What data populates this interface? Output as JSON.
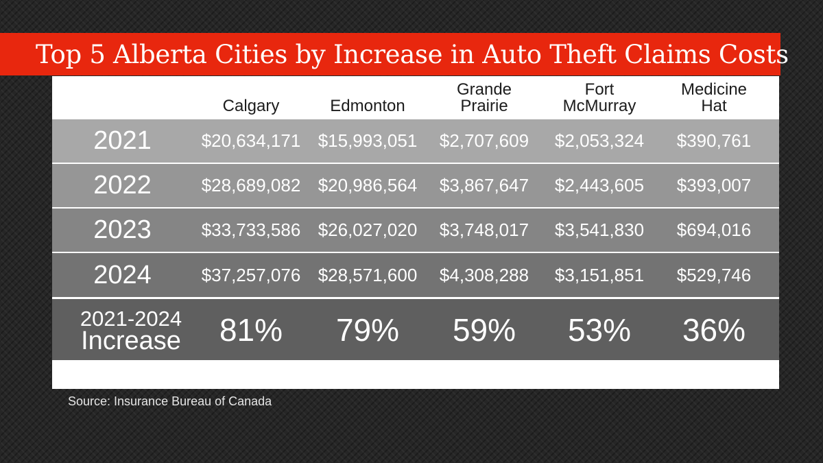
{
  "title": "Top 5 Alberta Cities by Increase in Auto Theft Claims Costs",
  "source": "Source: Insurance Bureau of Canada",
  "chart_data": {
    "type": "table",
    "title": "Top 5 Alberta Cities by Increase in Auto Theft Claims Costs",
    "columns": [
      "Calgary",
      "Edmonton",
      "Grande\nPrairie",
      "Fort\nMcMurray",
      "Medicine\nHat"
    ],
    "rows": [
      {
        "label": "2021",
        "values": [
          "$20,634,171",
          "$15,993,051",
          "$2,707,609",
          "$2,053,324",
          "$390,761"
        ]
      },
      {
        "label": "2022",
        "values": [
          "$28,689,082",
          "$20,986,564",
          "$3,867,647",
          "$2,443,605",
          "$393,007"
        ]
      },
      {
        "label": "2023",
        "values": [
          "$33,733,586",
          "$26,027,020",
          "$3,748,017",
          "$3,541,830",
          "$694,016"
        ]
      },
      {
        "label": "2024",
        "values": [
          "$37,257,076",
          "$28,571,600",
          "$4,308,288",
          "$3,151,851",
          "$529,746"
        ]
      }
    ],
    "increase_row": {
      "label_line1": "2021-2024",
      "label_line2": "Increase",
      "values": [
        "81%",
        "79%",
        "59%",
        "53%",
        "36%"
      ]
    },
    "colors": {
      "row_2021": "#a8a8a8",
      "row_2022": "#969696",
      "row_2023": "#858585",
      "row_2024": "#737373",
      "row_increase": "#5f5f5f",
      "title_bar": "#e8270e"
    }
  }
}
